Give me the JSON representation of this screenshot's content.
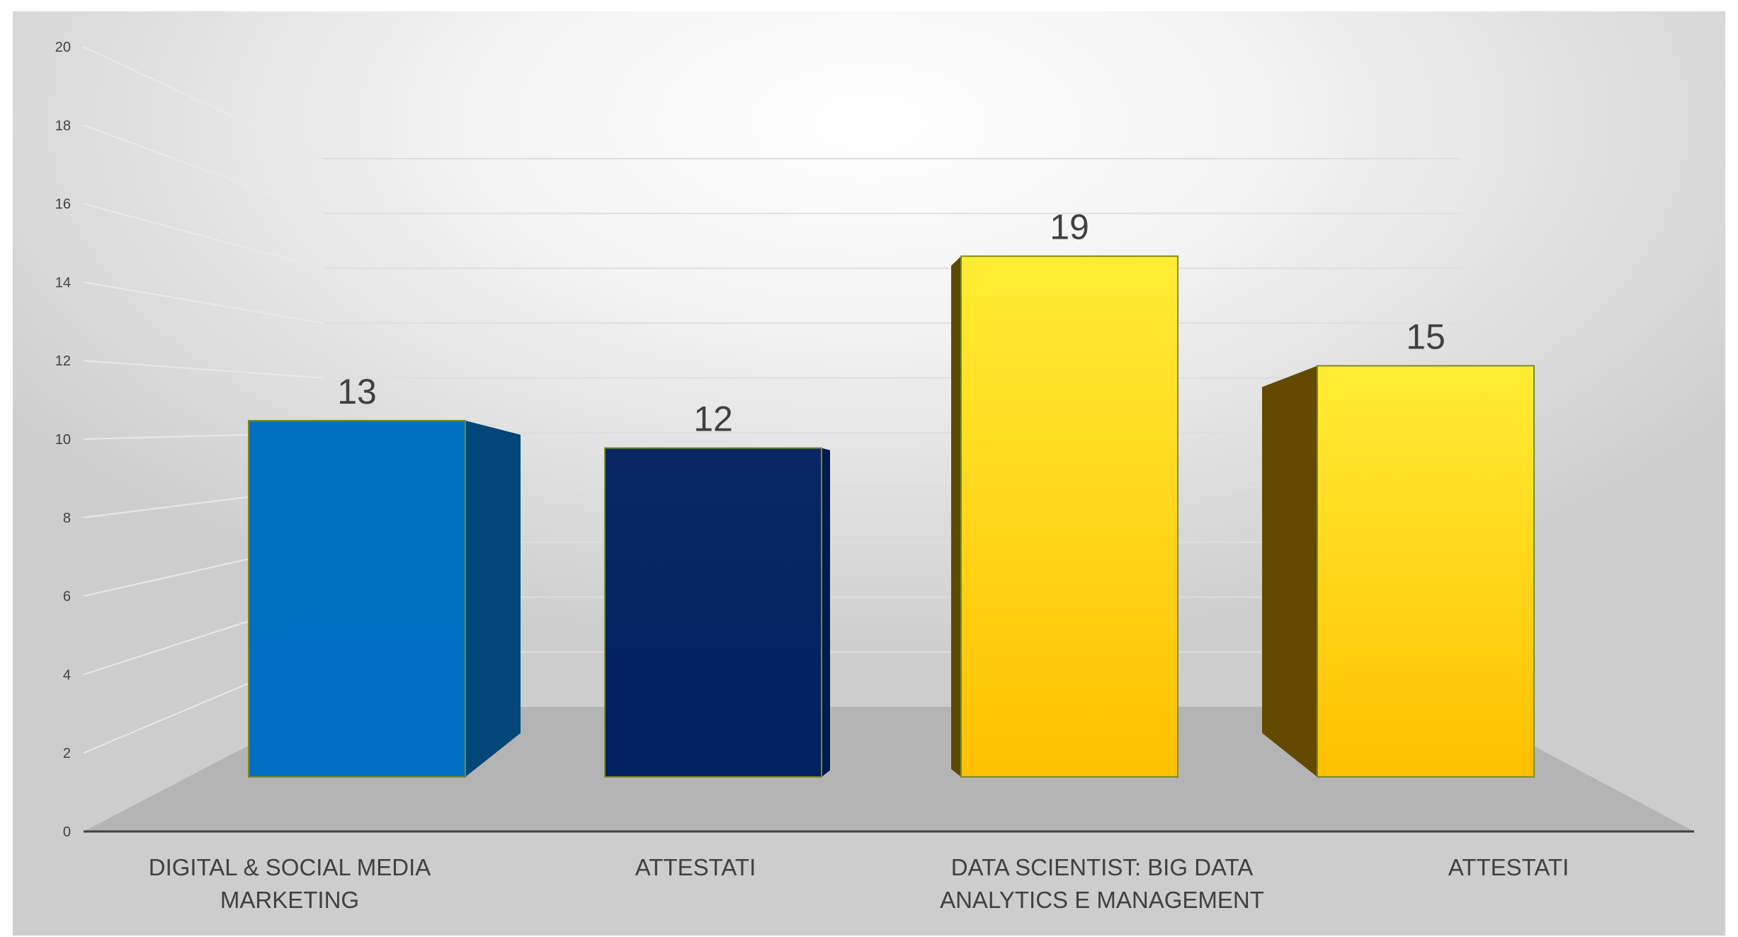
{
  "chart_data": {
    "type": "bar",
    "style": "3d-column",
    "categories": [
      [
        "DIGITAL & SOCIAL MEDIA",
        "MARKETING"
      ],
      [
        "ATTESTATI"
      ],
      [
        "DATA SCIENTIST: BIG DATA",
        "ANALYTICS E MANAGEMENT"
      ],
      [
        "ATTESTATI"
      ]
    ],
    "values": [
      13,
      12,
      19,
      15
    ],
    "value_labels": [
      "13",
      "12",
      "19",
      "15"
    ],
    "bar_colors": [
      "#0070c0",
      "#002060",
      "#ffd700",
      "#ffd700"
    ],
    "ylim": [
      0,
      20
    ],
    "yticks": [
      0,
      2,
      4,
      6,
      8,
      10,
      12,
      14,
      16,
      18,
      20
    ],
    "title": "",
    "xlabel": "",
    "ylabel": "",
    "grid": true,
    "legend": "none"
  }
}
